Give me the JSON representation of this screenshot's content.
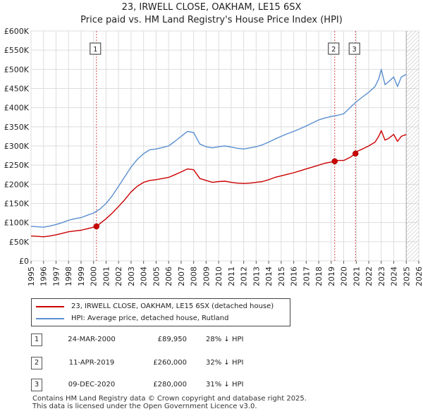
{
  "title_line1": "23, IRWELL CLOSE, OAKHAM, LE15 6SX",
  "title_line2": "Price paid vs. HM Land Registry's House Price Index (HPI)",
  "chart_data": {
    "type": "line",
    "x_range": [
      1995,
      2026
    ],
    "ylim": [
      0,
      600000
    ],
    "y_ticks": [
      "£0",
      "£50K",
      "£100K",
      "£150K",
      "£200K",
      "£250K",
      "£300K",
      "£350K",
      "£400K",
      "£450K",
      "£500K",
      "£550K",
      "£600K"
    ],
    "y_tick_values": [
      0,
      50000,
      100000,
      150000,
      200000,
      250000,
      300000,
      350000,
      400000,
      450000,
      500000,
      550000,
      600000
    ],
    "x_ticks": [
      "1995",
      "1996",
      "1997",
      "1998",
      "1999",
      "2000",
      "2001",
      "2002",
      "2003",
      "2004",
      "2005",
      "2006",
      "2007",
      "2008",
      "2009",
      "2010",
      "2011",
      "2012",
      "2013",
      "2014",
      "2015",
      "2016",
      "2017",
      "2018",
      "2019",
      "2020",
      "2021",
      "2022",
      "2023",
      "2024",
      "2025",
      "2026"
    ],
    "grid": true,
    "hatched_from": 2025.0,
    "series": [
      {
        "name": "23, IRWELL CLOSE, OAKHAM, LE15 6SX (detached house)",
        "color": "#cc0000",
        "x": [
          1995.0,
          1995.5,
          1996.0,
          1996.5,
          1997.0,
          1997.5,
          1998.0,
          1998.5,
          1999.0,
          1999.5,
          2000.0,
          2000.23,
          2000.5,
          2001.0,
          2001.5,
          2002.0,
          2002.5,
          2003.0,
          2003.5,
          2004.0,
          2004.5,
          2005.0,
          2005.5,
          2006.0,
          2006.5,
          2007.0,
          2007.5,
          2008.0,
          2008.5,
          2009.0,
          2009.5,
          2010.0,
          2010.5,
          2011.0,
          2011.5,
          2012.0,
          2012.5,
          2013.0,
          2013.5,
          2014.0,
          2014.5,
          2015.0,
          2015.5,
          2016.0,
          2016.5,
          2017.0,
          2017.5,
          2018.0,
          2018.5,
          2019.0,
          2019.28,
          2019.5,
          2020.0,
          2020.5,
          2020.94,
          2021.0,
          2021.5,
          2022.0,
          2022.5,
          2022.8,
          2023.0,
          2023.3,
          2023.6,
          2024.0,
          2024.3,
          2024.6,
          2025.0
        ],
        "values": [
          65000,
          64000,
          63000,
          65000,
          68000,
          72000,
          76000,
          78000,
          80000,
          84000,
          88000,
          89950,
          97000,
          110000,
          125000,
          142000,
          160000,
          180000,
          195000,
          205000,
          210000,
          212000,
          215000,
          218000,
          225000,
          232000,
          240000,
          238000,
          215000,
          210000,
          205000,
          207000,
          208000,
          205000,
          203000,
          202000,
          203000,
          205000,
          207000,
          212000,
          218000,
          222000,
          226000,
          230000,
          235000,
          240000,
          245000,
          250000,
          255000,
          258000,
          260000,
          262000,
          262000,
          270000,
          280000,
          285000,
          292000,
          300000,
          310000,
          325000,
          340000,
          315000,
          320000,
          330000,
          312000,
          325000,
          330000
        ]
      },
      {
        "name": "HPI: Average price, detached house, Rutland",
        "color": "#5a8fd0",
        "x": [
          1995.0,
          1995.5,
          1996.0,
          1996.5,
          1997.0,
          1997.5,
          1998.0,
          1998.5,
          1999.0,
          1999.5,
          2000.0,
          2000.5,
          2001.0,
          2001.5,
          2002.0,
          2002.5,
          2003.0,
          2003.5,
          2004.0,
          2004.5,
          2005.0,
          2005.5,
          2006.0,
          2006.5,
          2007.0,
          2007.5,
          2008.0,
          2008.5,
          2009.0,
          2009.5,
          2010.0,
          2010.5,
          2011.0,
          2011.5,
          2012.0,
          2012.5,
          2013.0,
          2013.5,
          2014.0,
          2014.5,
          2015.0,
          2015.5,
          2016.0,
          2016.5,
          2017.0,
          2017.5,
          2018.0,
          2018.5,
          2019.0,
          2019.5,
          2020.0,
          2020.5,
          2021.0,
          2021.5,
          2022.0,
          2022.5,
          2022.8,
          2023.0,
          2023.3,
          2023.6,
          2024.0,
          2024.3,
          2024.6,
          2025.0
        ],
        "values": [
          90000,
          89000,
          88000,
          91000,
          95000,
          100000,
          106000,
          110000,
          113000,
          119000,
          125000,
          135000,
          150000,
          170000,
          195000,
          220000,
          245000,
          265000,
          280000,
          290000,
          292000,
          296000,
          300000,
          312000,
          325000,
          338000,
          335000,
          305000,
          298000,
          295000,
          298000,
          300000,
          297000,
          294000,
          292000,
          295000,
          298000,
          303000,
          310000,
          318000,
          325000,
          332000,
          338000,
          345000,
          352000,
          360000,
          368000,
          373000,
          377000,
          380000,
          384000,
          400000,
          415000,
          428000,
          440000,
          455000,
          475000,
          500000,
          460000,
          468000,
          480000,
          455000,
          480000,
          487000
        ]
      }
    ],
    "markers": [
      {
        "label": "1",
        "x": 2000.23,
        "value": 89950
      },
      {
        "label": "2",
        "x": 2019.28,
        "value": 260000
      },
      {
        "label": "3",
        "x": 2020.94,
        "value": 280000
      }
    ]
  },
  "legend": {
    "entry1": "23, IRWELL CLOSE, OAKHAM, LE15 6SX (detached house)",
    "entry2": "HPI: Average price, detached house, Rutland"
  },
  "transactions": [
    {
      "num": "1",
      "date": "24-MAR-2000",
      "price": "£89,950",
      "hpi": "28% ↓ HPI"
    },
    {
      "num": "2",
      "date": "11-APR-2019",
      "price": "£260,000",
      "hpi": "32% ↓ HPI"
    },
    {
      "num": "3",
      "date": "09-DEC-2020",
      "price": "£280,000",
      "hpi": "31% ↓ HPI"
    }
  ],
  "footer": "Contains HM Land Registry data © Crown copyright and database right 2025.\nThis data is licensed under the Open Government Licence v3.0."
}
